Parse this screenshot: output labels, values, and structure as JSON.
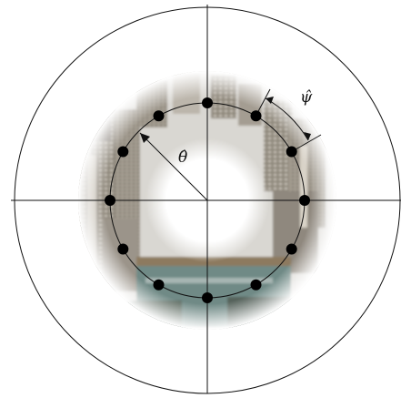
{
  "diagram": {
    "labels": {
      "theta": "θ̂",
      "psi": "ψ̂"
    },
    "sample_points": 12,
    "colors": {
      "stroke": "#111111",
      "point": "#000000",
      "background": "#ffffff",
      "image_building_dark": "#6f6a63",
      "image_building_light": "#b9b3a8",
      "image_sky": "#e8edf1",
      "image_water": "#6f8a86"
    }
  }
}
